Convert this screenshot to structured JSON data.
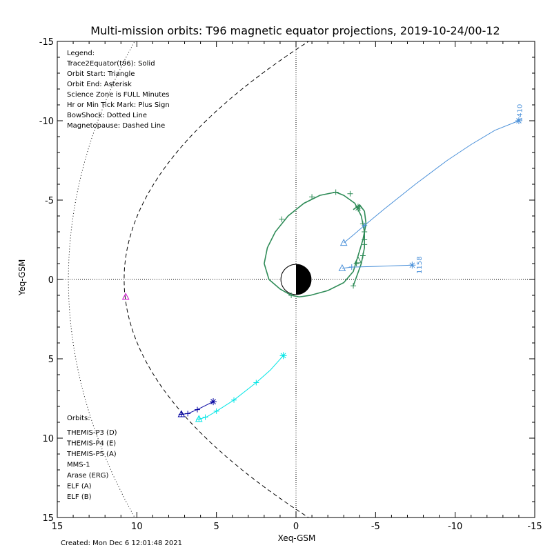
{
  "chart_data": {
    "type": "scatter",
    "title": "Multi-mission orbits: T96 magnetic equator projections, 2019-10-24/00-12",
    "xlabel": "Xeq-GSM",
    "ylabel": "Yeq-GSM",
    "xlim": [
      15,
      -15
    ],
    "ylim": [
      15,
      -15
    ],
    "x_ticks": [
      "15",
      "10",
      "5",
      "0",
      "-5",
      "-10",
      "-15"
    ],
    "y_ticks": [
      "-15",
      "-10",
      "-5",
      "0",
      "5",
      "10",
      "15"
    ],
    "grid": false,
    "legend_lines": [
      "Legend:",
      "Trace2Equator(t96): Solid",
      "Orbit Start: Triangle",
      "Orbit End: Asterisk",
      "Science Zone is FULL Minutes",
      "Hr or Min Tick Mark: Plus Sign",
      "BowShock: Dotted Line",
      "Magnetopause: Dashed Line"
    ],
    "orbits_header": "Orbits:",
    "orbit_legend": [
      {
        "label": "THEMIS-P3 (D)",
        "color": "#00e5e5"
      },
      {
        "label": "THEMIS-P4 (E)",
        "color": "#0000a0"
      },
      {
        "label": "THEMIS-P5 (A)",
        "color": "#cc00cc"
      },
      {
        "label": "MMS-1",
        "color": "#000000"
      },
      {
        "label": "Arase (ERG)",
        "color": "#2e8b57"
      },
      {
        "label": "ELF (A)",
        "color": "#4a90d9"
      },
      {
        "label": "ELF (B)",
        "color": "#e00000"
      }
    ],
    "created_text": "Created: Mon Dec  6 12:01:48 2021",
    "series": [
      {
        "name": "THEMIS-P3 (D)",
        "color": "#00e5e5",
        "x": [
          6.1,
          5.9,
          5.6,
          5.0,
          3.9,
          2.5,
          1.6,
          0.8
        ],
        "y": [
          8.8,
          8.75,
          8.65,
          8.3,
          7.6,
          6.5,
          5.7,
          4.8
        ],
        "ticks": [
          [
            6.1,
            8.8
          ],
          [
            5.7,
            8.68
          ],
          [
            5.0,
            8.3
          ],
          [
            3.9,
            7.6
          ],
          [
            2.5,
            6.5
          ]
        ],
        "start": [
          6.1,
          8.8
        ],
        "end": [
          0.8,
          4.8
        ]
      },
      {
        "name": "THEMIS-P4 (E)",
        "color": "#0000a0",
        "x": [
          7.2,
          6.8,
          6.2,
          5.6,
          5.2
        ],
        "y": [
          8.5,
          8.45,
          8.2,
          7.9,
          7.7
        ],
        "ticks": [
          [
            7.2,
            8.5
          ],
          [
            6.8,
            8.45
          ],
          [
            6.2,
            8.2
          ]
        ],
        "start": [
          7.2,
          8.5
        ],
        "end": [
          5.2,
          7.7
        ]
      },
      {
        "name": "THEMIS-P5 (A)",
        "color": "#cc00cc",
        "x": [
          10.7
        ],
        "y": [
          1.1
        ],
        "ticks": [],
        "start": [
          10.7,
          1.1
        ],
        "end": null
      },
      {
        "name": "Arase (ERG)",
        "color": "#2e8b57",
        "x": [
          -3.6,
          -4.1,
          -4.3,
          -4.3,
          -4.1,
          -3.7,
          -3.0,
          -2.5,
          -1.5,
          -0.5,
          0.5,
          1.3,
          1.8,
          2.0,
          1.7,
          1.0,
          0.3,
          -0.2,
          -0.9,
          -2.0,
          -3.0,
          -3.6,
          -3.9,
          -4.2,
          -4.4,
          -4.3,
          -4.0,
          -3.6
        ],
        "y": [
          0.4,
          -1.0,
          -2.0,
          -3.0,
          -4.0,
          -4.8,
          -5.3,
          -5.5,
          -5.3,
          -4.8,
          -4.0,
          -3.0,
          -2.0,
          -1.0,
          0.0,
          0.6,
          1.0,
          1.1,
          1.0,
          0.7,
          0.2,
          -0.5,
          -1.5,
          -2.5,
          -3.5,
          -4.3,
          -4.7,
          -4.4
        ],
        "ticks": [
          [
            -3.6,
            0.4
          ],
          [
            -4.2,
            -1.5
          ],
          [
            -4.3,
            -2.5
          ],
          [
            -4.2,
            -3.5
          ],
          [
            -3.9,
            -4.6
          ],
          [
            -3.4,
            -5.4
          ],
          [
            -2.5,
            -5.5
          ],
          [
            -1.0,
            -5.2
          ],
          [
            0.9,
            -3.8
          ],
          [
            0.3,
            1.0
          ],
          [
            -3.8,
            -1.0
          ],
          [
            -4.3,
            -2.2
          ],
          [
            -4.3,
            -3.0
          ],
          [
            -4.0,
            -4.5
          ]
        ],
        "start": [
          -3.9,
          -1.2
        ],
        "end": [
          -3.9,
          -4.5
        ]
      },
      {
        "name": "ELF (A)",
        "color": "#4a90d9",
        "x": [
          -3.0,
          -3.6,
          -4.3,
          -5.5,
          -7.5,
          -9.5,
          -11.0,
          -12.5,
          -14.0
        ],
        "y": [
          -2.3,
          -2.8,
          -3.4,
          -4.4,
          -6.0,
          -7.5,
          -8.5,
          -9.4,
          -10.0
        ],
        "ticks": [
          [
            -4.3,
            -3.4
          ]
        ],
        "start": [
          -3.0,
          -2.3
        ],
        "end": [
          -14.0,
          -10.0
        ]
      },
      {
        "name": "ELF (A)",
        "color": "#4a90d9",
        "x": [
          -2.9,
          -3.5,
          -5.0,
          -7.3
        ],
        "y": [
          -0.7,
          -0.78,
          -0.82,
          -0.9
        ],
        "ticks": [
          [
            -3.5,
            -0.78
          ]
        ],
        "start": [
          -2.9,
          -0.7
        ],
        "end": [
          -7.3,
          -0.9
        ]
      }
    ],
    "annotations": [
      {
        "text": "1410",
        "x": -14.2,
        "y": -10.5,
        "color": "#4a90d9"
      },
      {
        "text": "1158",
        "x": -7.9,
        "y": -0.9,
        "color": "#4a90d9"
      }
    ]
  }
}
